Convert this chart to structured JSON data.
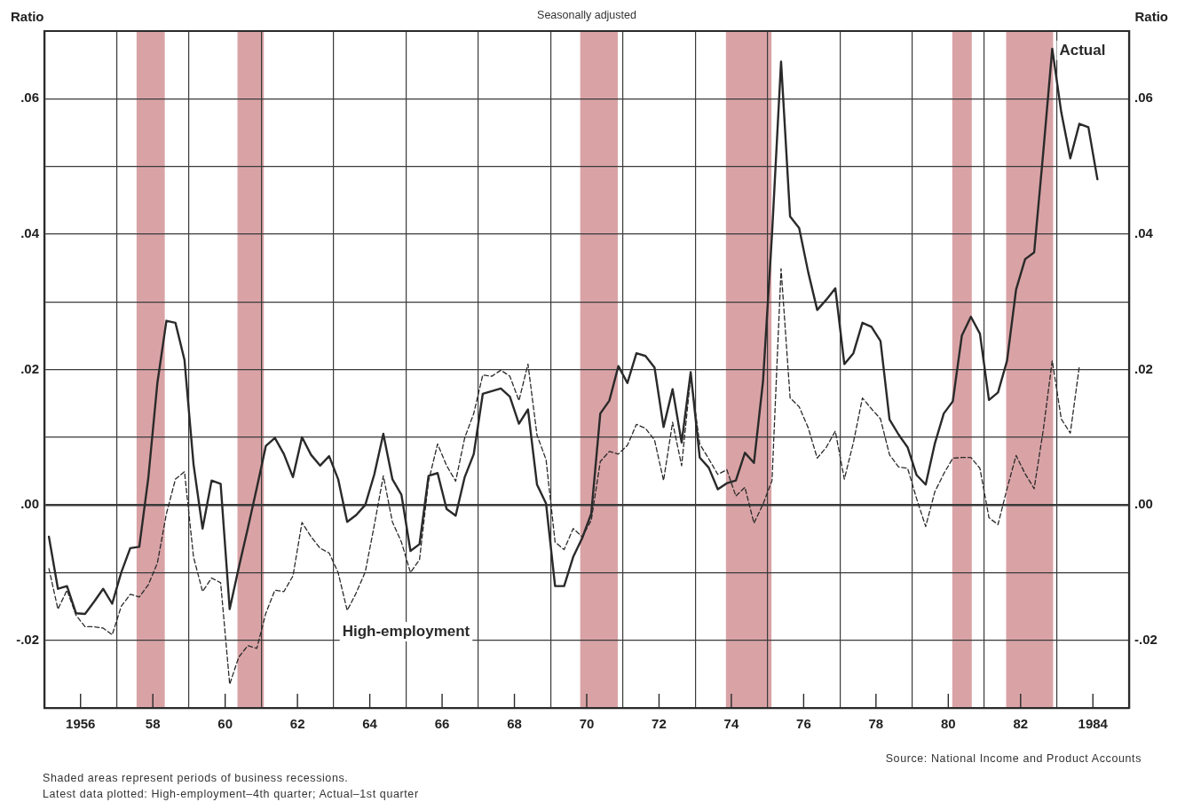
{
  "chart_data": {
    "type": "line",
    "subtitle": "Seasonally adjusted",
    "ylabel": "Ratio",
    "y2label": "Ratio",
    "xlim": [
      1955,
      1985
    ],
    "xticks": [
      1956,
      {
        "value": 1957,
        "label": null
      },
      {
        "value": 1958,
        "label": "58"
      },
      {
        "value": 1959,
        "label": null
      },
      {
        "value": 1960,
        "label": "60"
      },
      {
        "value": 1961,
        "label": null
      },
      {
        "value": 1962,
        "label": "62"
      },
      {
        "value": 1963,
        "label": null
      },
      {
        "value": 1964,
        "label": "64"
      },
      {
        "value": 1965,
        "label": null
      },
      {
        "value": 1966,
        "label": "66"
      },
      {
        "value": 1967,
        "label": null
      },
      {
        "value": 1968,
        "label": "68"
      },
      {
        "value": 1969,
        "label": null
      },
      {
        "value": 1970,
        "label": "70"
      },
      {
        "value": 1971,
        "label": null
      },
      {
        "value": 1972,
        "label": "72"
      },
      {
        "value": 1973,
        "label": null
      },
      {
        "value": 1974,
        "label": "74"
      },
      {
        "value": 1975,
        "label": null
      },
      {
        "value": 1976,
        "label": "76"
      },
      {
        "value": 1977,
        "label": null
      },
      {
        "value": 1978,
        "label": "78"
      },
      {
        "value": 1979,
        "label": null
      },
      {
        "value": 1980,
        "label": "80"
      },
      {
        "value": 1981,
        "label": null
      },
      {
        "value": 1982,
        "label": "82"
      },
      {
        "value": 1983,
        "label": null
      },
      1984
    ],
    "ylim": [
      -0.03,
      0.07
    ],
    "yticks": [
      {
        "value": -0.03,
        "label": null
      },
      {
        "value": -0.02,
        "label": "-.02"
      },
      {
        "value": -0.01,
        "label": null
      },
      {
        "value": 0,
        "label": ".00"
      },
      {
        "value": 0.01,
        "label": null
      },
      {
        "value": 0.02,
        "label": ".02"
      },
      {
        "value": 0.03,
        "label": null
      },
      {
        "value": 0.04,
        "label": ".04"
      },
      {
        "value": 0.05,
        "label": null
      },
      {
        "value": 0.06,
        "label": ".06"
      },
      {
        "value": 0.07,
        "label": null
      }
    ],
    "y2lim": [
      -0.03,
      0.07
    ],
    "y2ticks": [
      {
        "value": -0.02,
        "label": "-.02"
      },
      {
        "value": 0,
        "label": ".00"
      },
      {
        "value": 0.02,
        "label": ".02"
      },
      {
        "value": 0.04,
        "label": ".04"
      },
      {
        "value": 0.06,
        "label": ".06"
      }
    ],
    "grid": true,
    "legend": false,
    "marker": "none",
    "bands": [
      {
        "axis": "x",
        "from": 1957.55,
        "to": 1958.33,
        "color": "#d9a3a6"
      },
      {
        "axis": "x",
        "from": 1960.34,
        "to": 1961.07,
        "color": "#d9a3a6"
      },
      {
        "axis": "x",
        "from": 1969.82,
        "to": 1970.86,
        "color": "#d9a3a6"
      },
      {
        "axis": "x",
        "from": 1973.85,
        "to": 1975.11,
        "color": "#d9a3a6"
      },
      {
        "axis": "x",
        "from": 1980.11,
        "to": 1980.65,
        "color": "#d9a3a6"
      },
      {
        "axis": "x",
        "from": 1981.6,
        "to": 1982.9,
        "color": "#d9a3a6"
      }
    ],
    "series": [
      {
        "name": "Actual",
        "color": "#2a2a2a",
        "line_style": "solid",
        "x": [
          1955.125,
          1955.375,
          1955.625,
          1955.875,
          1956.125,
          1956.375,
          1956.625,
          1956.875,
          1957.125,
          1957.375,
          1957.625,
          1957.875,
          1958.125,
          1958.375,
          1958.625,
          1958.875,
          1959.125,
          1959.375,
          1959.625,
          1959.875,
          1960.125,
          1960.375,
          1960.625,
          1960.875,
          1961.125,
          1961.375,
          1961.625,
          1961.875,
          1962.125,
          1962.375,
          1962.625,
          1962.875,
          1963.125,
          1963.375,
          1963.625,
          1963.875,
          1964.125,
          1964.375,
          1964.625,
          1964.875,
          1965.125,
          1965.375,
          1965.625,
          1965.875,
          1966.125,
          1966.375,
          1966.625,
          1966.875,
          1967.125,
          1967.375,
          1967.625,
          1967.875,
          1968.125,
          1968.375,
          1968.625,
          1968.875,
          1969.125,
          1969.375,
          1969.625,
          1969.875,
          1970.125,
          1970.375,
          1970.625,
          1970.875,
          1971.125,
          1971.375,
          1971.625,
          1971.875,
          1972.125,
          1972.375,
          1972.625,
          1972.875,
          1973.125,
          1973.375,
          1973.625,
          1973.875,
          1974.125,
          1974.375,
          1974.625,
          1974.875,
          1975.125,
          1975.375,
          1975.625,
          1975.875,
          1976.125,
          1976.375,
          1976.625,
          1976.875,
          1977.125,
          1977.375,
          1977.625,
          1977.875,
          1978.125,
          1978.375,
          1978.625,
          1978.875,
          1979.125,
          1979.375,
          1979.625,
          1979.875,
          1980.125,
          1980.375,
          1980.625,
          1980.875,
          1981.125,
          1981.375,
          1981.625,
          1981.875,
          1982.125,
          1982.375,
          1982.625,
          1982.875,
          1983.125,
          1983.375,
          1983.625,
          1983.875,
          1984.125
        ],
        "values": [
          -0.0047,
          -0.0124,
          -0.012,
          -0.016,
          -0.0161,
          -0.0143,
          -0.0124,
          -0.0146,
          -0.01,
          -0.0064,
          -0.0062,
          0.004,
          0.018,
          0.0272,
          0.0269,
          0.0214,
          0.006,
          -0.0035,
          0.0036,
          0.0031,
          -0.0154,
          -0.0093,
          -0.0035,
          0.0025,
          0.0087,
          0.0099,
          0.0075,
          0.0041,
          0.01,
          0.0074,
          0.0058,
          0.0072,
          0.0038,
          -0.0025,
          -0.0015,
          0.0,
          0.0045,
          0.0105,
          0.0038,
          0.0015,
          -0.0068,
          -0.0058,
          0.0043,
          0.0047,
          -0.0006,
          -0.0016,
          0.0041,
          0.0075,
          0.0164,
          0.0168,
          0.0172,
          0.016,
          0.012,
          0.0141,
          0.003,
          0.0002,
          -0.012,
          -0.012,
          -0.0077,
          -0.0049,
          -0.0013,
          0.0135,
          0.0154,
          0.0205,
          0.018,
          0.0224,
          0.022,
          0.0203,
          0.0115,
          0.0171,
          0.0092,
          0.0196,
          0.007,
          0.0055,
          0.0023,
          0.0032,
          0.0036,
          0.0077,
          0.0062,
          0.0182,
          0.04,
          0.0655,
          0.0426,
          0.0409,
          0.0344,
          0.0288,
          0.0303,
          0.032,
          0.0208,
          0.0224,
          0.0269,
          0.0263,
          0.0242,
          0.0126,
          0.0104,
          0.0085,
          0.0044,
          0.003,
          0.009,
          0.0135,
          0.0153,
          0.025,
          0.0278,
          0.0253,
          0.0155,
          0.0166,
          0.0213,
          0.0318,
          0.0363,
          0.0373,
          0.052,
          0.0674,
          0.058,
          0.0512,
          0.0563,
          0.0558,
          0.0481
        ]
      },
      {
        "name": "High-employment",
        "color": "#2a2a2a",
        "line_style": "dashed",
        "x": [
          1955.125,
          1955.375,
          1955.625,
          1955.875,
          1956.125,
          1956.375,
          1956.625,
          1956.875,
          1957.125,
          1957.375,
          1957.625,
          1957.875,
          1958.125,
          1958.375,
          1958.625,
          1958.875,
          1959.125,
          1959.375,
          1959.625,
          1959.875,
          1960.125,
          1960.375,
          1960.625,
          1960.875,
          1961.125,
          1961.375,
          1961.625,
          1961.875,
          1962.125,
          1962.375,
          1962.625,
          1962.875,
          1963.125,
          1963.375,
          1963.625,
          1963.875,
          1964.125,
          1964.375,
          1964.625,
          1964.875,
          1965.125,
          1965.375,
          1965.625,
          1965.875,
          1966.125,
          1966.375,
          1966.625,
          1966.875,
          1967.125,
          1967.375,
          1967.625,
          1967.875,
          1968.125,
          1968.375,
          1968.625,
          1968.875,
          1969.125,
          1969.375,
          1969.625,
          1969.875,
          1970.125,
          1970.375,
          1970.625,
          1970.875,
          1971.125,
          1971.375,
          1971.625,
          1971.875,
          1972.125,
          1972.375,
          1972.625,
          1972.875,
          1973.125,
          1973.375,
          1973.625,
          1973.875,
          1974.125,
          1974.375,
          1974.625,
          1974.875,
          1975.125,
          1975.375,
          1975.625,
          1975.875,
          1976.125,
          1976.375,
          1976.625,
          1976.875,
          1977.125,
          1977.375,
          1977.625,
          1977.875,
          1978.125,
          1978.375,
          1978.625,
          1978.875,
          1979.125,
          1979.375,
          1979.625,
          1979.875,
          1980.125,
          1980.375,
          1980.625,
          1980.875,
          1981.125,
          1981.375,
          1981.625,
          1981.875,
          1982.125,
          1982.375,
          1982.625,
          1982.875,
          1983.125,
          1983.375,
          1983.625
        ],
        "values": [
          -0.0094,
          -0.0154,
          -0.0126,
          -0.0163,
          -0.018,
          -0.018,
          -0.0182,
          -0.0192,
          -0.015,
          -0.0132,
          -0.0136,
          -0.0118,
          -0.0086,
          -0.0013,
          0.0038,
          0.0049,
          -0.0077,
          -0.0128,
          -0.0108,
          -0.0115,
          -0.0265,
          -0.0225,
          -0.0208,
          -0.0212,
          -0.016,
          -0.0126,
          -0.0128,
          -0.0105,
          -0.0026,
          -0.0047,
          -0.0064,
          -0.0071,
          -0.01,
          -0.0156,
          -0.013,
          -0.0099,
          -0.003,
          0.0043,
          -0.0025,
          -0.0055,
          -0.01,
          -0.0081,
          0.0035,
          0.009,
          0.0058,
          0.0035,
          0.0099,
          0.0135,
          0.0192,
          0.019,
          0.0199,
          0.019,
          0.0154,
          0.0208,
          0.0103,
          0.0067,
          -0.0055,
          -0.0066,
          -0.0035,
          -0.0047,
          -0.0023,
          0.0064,
          0.0079,
          0.0075,
          0.0088,
          0.0119,
          0.0113,
          0.0096,
          0.0036,
          0.0122,
          0.0058,
          0.019,
          0.009,
          0.0068,
          0.0045,
          0.0052,
          0.0013,
          0.0026,
          -0.0027,
          0.0001,
          0.0036,
          0.0349,
          0.0158,
          0.0145,
          0.0114,
          0.0069,
          0.0085,
          0.0109,
          0.0038,
          0.0092,
          0.0158,
          0.0142,
          0.0127,
          0.0074,
          0.0056,
          0.0054,
          0.0009,
          -0.0032,
          0.0019,
          0.0046,
          0.0069,
          0.007,
          0.007,
          0.0054,
          -0.0019,
          -0.0029,
          0.0024,
          0.0073,
          0.0046,
          0.0024,
          0.011,
          0.0213,
          0.0127,
          0.0106,
          0.0205
        ]
      }
    ],
    "annotations": [
      "Source: National Income and Product Accounts",
      "Shaded areas represent periods of business recessions.",
      "Latest data plotted: High-employment–4th quarter; Actual–1st quarter"
    ]
  }
}
